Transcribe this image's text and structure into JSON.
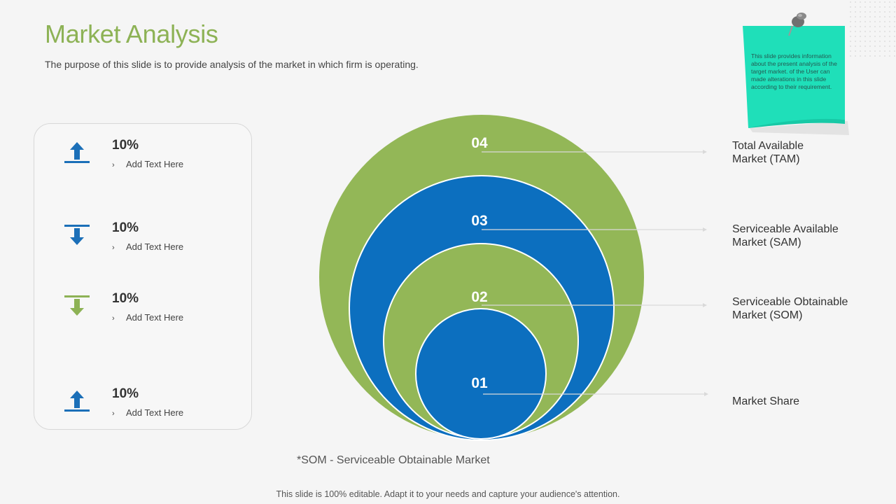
{
  "header": {
    "title": "Market Analysis",
    "subtitle": "The purpose of this slide is to provide analysis of the market in which firm is operating."
  },
  "stats": [
    {
      "value": "10%",
      "caption": "Add Text Here",
      "icon": "arrow-up-icon",
      "color": "#1b6fb8"
    },
    {
      "value": "10%",
      "caption": "Add Text Here",
      "icon": "arrow-down-icon",
      "color": "#1b6fb8"
    },
    {
      "value": "10%",
      "caption": "Add Text Here",
      "icon": "arrow-down-icon",
      "color": "#8db255"
    },
    {
      "value": "10%",
      "caption": "Add Text Here",
      "icon": "arrow-up-icon",
      "color": "#1b6fb8"
    }
  ],
  "diagram": {
    "rings": [
      {
        "number": "04",
        "label_line1": "Total Available",
        "label_line2": "Market (TAM)",
        "color": "#93b757"
      },
      {
        "number": "03",
        "label_line1": "Serviceable Available",
        "label_line2": "Market (SAM)",
        "color": "#0c6fbf"
      },
      {
        "number": "02",
        "label_line1": "Serviceable Obtainable",
        "label_line2": "Market (SOM)",
        "color": "#93b757"
      },
      {
        "number": "01",
        "label_line1": "Market Share",
        "label_line2": "",
        "color": "#0c6fbf"
      }
    ]
  },
  "footnote": "*SOM - Serviceable Obtainable Market",
  "footer": "This slide is 100% editable. Adapt it to your needs and capture your audience's attention.",
  "sticky_note": {
    "text": "This slide provides information about the present analysis of the target market. of the User can made alterations in this slide according to their requirement.",
    "color": "#1fdfb9",
    "icon": "pushpin-icon"
  }
}
